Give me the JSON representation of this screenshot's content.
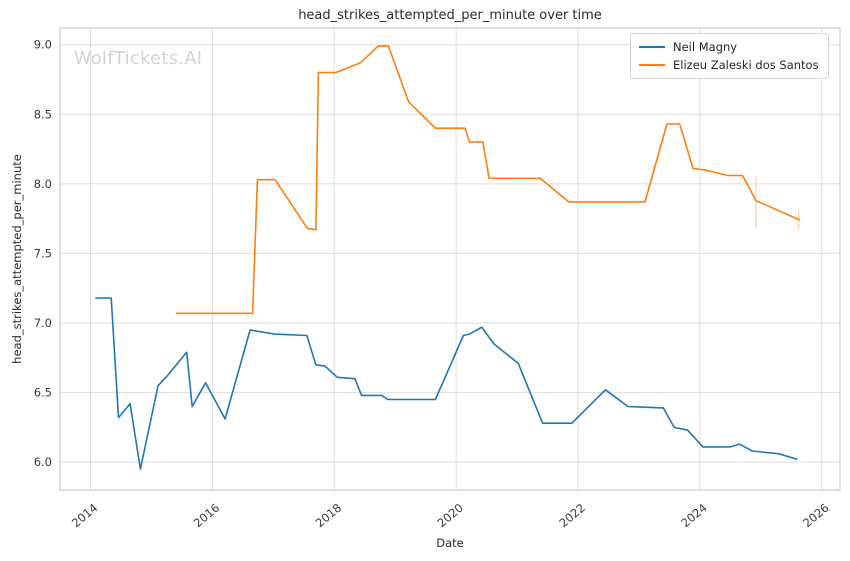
{
  "watermark": {
    "text": "WolfTickets.AI",
    "color": "#d2d2d2"
  },
  "chart_data": {
    "type": "line",
    "title": "head_strikes_attempted_per_minute over time",
    "xlabel": "Date",
    "ylabel": "head_strikes_attempted_per_minute",
    "x_ticks": [
      2014,
      2016,
      2018,
      2020,
      2022,
      2024,
      2026
    ],
    "y_ticks": [
      6.0,
      6.5,
      7.0,
      7.5,
      8.0,
      8.5,
      9.0
    ],
    "xlim": [
      2013.5,
      2026.3
    ],
    "ylim": [
      5.8,
      9.12
    ],
    "grid": true,
    "grid_color": "#dddddd",
    "spine_color": "#cbcbcb",
    "legend_position": "upper right",
    "series": [
      {
        "name": "Neil Magny",
        "color": "#1f77b4",
        "points": [
          [
            2014.08,
            7.18
          ],
          [
            2014.34,
            7.18
          ],
          [
            2014.46,
            6.32
          ],
          [
            2014.65,
            6.42
          ],
          [
            2014.82,
            5.95
          ],
          [
            2015.11,
            6.55
          ],
          [
            2015.26,
            6.62
          ],
          [
            2015.58,
            6.79
          ],
          [
            2015.67,
            6.4
          ],
          [
            2015.89,
            6.57
          ],
          [
            2016.21,
            6.31
          ],
          [
            2016.62,
            6.95
          ],
          [
            2017.02,
            6.92
          ],
          [
            2017.55,
            6.91
          ],
          [
            2017.7,
            6.7
          ],
          [
            2017.85,
            6.69
          ],
          [
            2018.05,
            6.61
          ],
          [
            2018.34,
            6.6
          ],
          [
            2018.45,
            6.48
          ],
          [
            2018.78,
            6.48
          ],
          [
            2018.88,
            6.45
          ],
          [
            2019.66,
            6.45
          ],
          [
            2020.12,
            6.91
          ],
          [
            2020.22,
            6.92
          ],
          [
            2020.42,
            6.97
          ],
          [
            2020.62,
            6.85
          ],
          [
            2021.02,
            6.71
          ],
          [
            2021.42,
            6.28
          ],
          [
            2021.9,
            6.28
          ],
          [
            2022.45,
            6.52
          ],
          [
            2022.82,
            6.4
          ],
          [
            2023.4,
            6.39
          ],
          [
            2023.58,
            6.25
          ],
          [
            2023.8,
            6.23
          ],
          [
            2024.05,
            6.11
          ],
          [
            2024.5,
            6.11
          ],
          [
            2024.65,
            6.13
          ],
          [
            2024.86,
            6.08
          ],
          [
            2025.3,
            6.06
          ],
          [
            2025.6,
            6.02
          ]
        ],
        "error_bars": []
      },
      {
        "name": "Elizeu Zaleski dos Santos",
        "color": "#ff7f0e",
        "points": [
          [
            2015.4,
            7.07
          ],
          [
            2016.66,
            7.07
          ],
          [
            2016.74,
            8.03
          ],
          [
            2017.03,
            8.03
          ],
          [
            2017.56,
            7.68
          ],
          [
            2017.7,
            7.67
          ],
          [
            2017.74,
            8.8
          ],
          [
            2018.03,
            8.8
          ],
          [
            2018.43,
            8.87
          ],
          [
            2018.72,
            8.99
          ],
          [
            2018.89,
            8.99
          ],
          [
            2019.22,
            8.59
          ],
          [
            2019.66,
            8.4
          ],
          [
            2020.15,
            8.4
          ],
          [
            2020.22,
            8.3
          ],
          [
            2020.44,
            8.3
          ],
          [
            2020.54,
            8.04
          ],
          [
            2021.38,
            8.04
          ],
          [
            2021.85,
            7.87
          ],
          [
            2023.1,
            7.87
          ],
          [
            2023.46,
            8.43
          ],
          [
            2023.67,
            8.43
          ],
          [
            2023.89,
            8.11
          ],
          [
            2024.08,
            8.1
          ],
          [
            2024.46,
            8.06
          ],
          [
            2024.7,
            8.06
          ],
          [
            2024.92,
            7.88
          ],
          [
            2025.64,
            7.74
          ]
        ],
        "error_bars": [
          {
            "x": 2024.92,
            "low": 7.68,
            "high": 8.06
          },
          {
            "x": 2025.62,
            "low": 7.68,
            "high": 7.81
          }
        ],
        "error_color": "#ffd2a0"
      }
    ]
  }
}
